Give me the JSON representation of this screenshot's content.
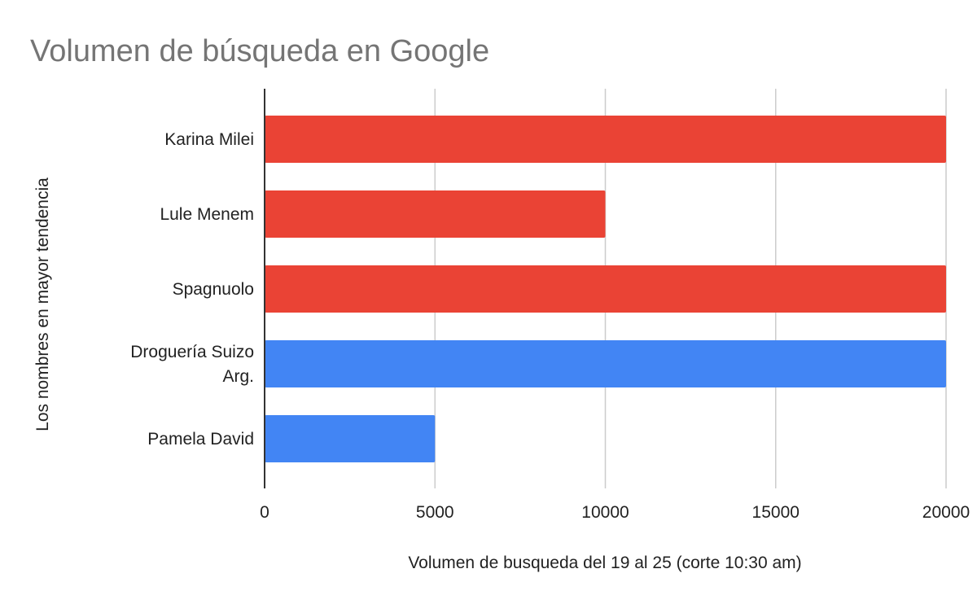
{
  "chart_data": {
    "type": "bar",
    "orientation": "horizontal",
    "title": "Volumen de búsqueda en Google",
    "xlabel": "Volumen de busqueda del 19 al 25 (corte 10:30 am)",
    "ylabel": "Los nombres en mayor tendencia",
    "xlim": [
      0,
      20000
    ],
    "x_ticks": [
      0,
      5000,
      10000,
      15000,
      20000
    ],
    "x_tick_labels": [
      "0",
      "5000",
      "10000",
      "15000",
      "20000"
    ],
    "grid": true,
    "legend": "none",
    "categories": [
      [
        "Karina Milei"
      ],
      [
        "Lule Menem"
      ],
      [
        "Spagnuolo"
      ],
      [
        "Droguería Suizo",
        "Arg."
      ],
      [
        "Pamela David"
      ]
    ],
    "values": [
      20000,
      10000,
      20000,
      20000,
      5000
    ],
    "bar_colors": [
      "#ea4335",
      "#ea4335",
      "#ea4335",
      "#4285f4",
      "#4285f4"
    ],
    "colors": {
      "grid": "#cccccc",
      "axis": "#333333"
    }
  }
}
